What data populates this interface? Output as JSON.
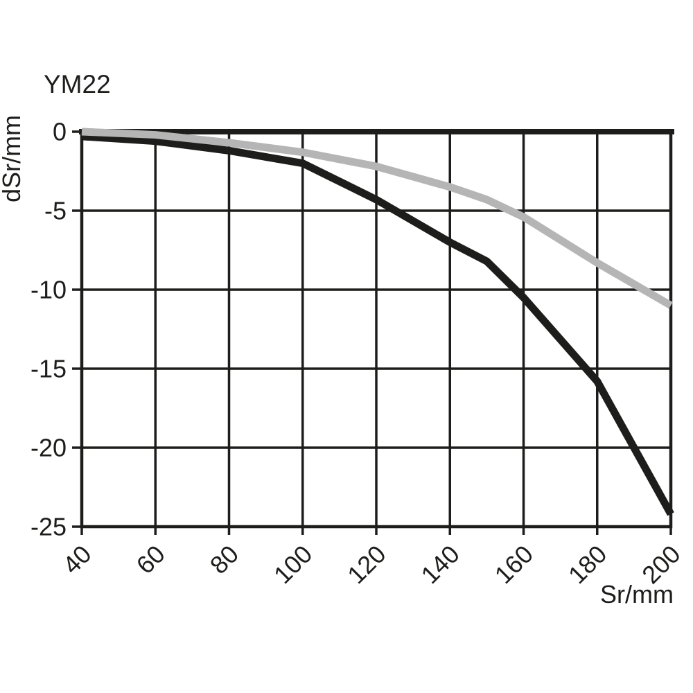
{
  "page": {
    "background": "#ffffff"
  },
  "chart_data": {
    "type": "line",
    "title": "YM22",
    "xlabel": "Sr/mm",
    "ylabel": "dSr/mm",
    "xlim": [
      40,
      200
    ],
    "ylim": [
      -25,
      0
    ],
    "xticks": [
      40,
      60,
      80,
      100,
      120,
      140,
      160,
      180,
      200
    ],
    "yticks": [
      0,
      -5,
      -10,
      -15,
      -20,
      -25
    ],
    "grid": true,
    "legend": "none",
    "axis_color": "#1d1d1b",
    "x": [
      40,
      60,
      80,
      100,
      120,
      140,
      150,
      160,
      180,
      200
    ],
    "series": [
      {
        "name": "black-curve",
        "color": "#1d1d1b",
        "values": [
          -0.3,
          -0.6,
          -1.2,
          -2.0,
          -4.3,
          -7.0,
          -8.2,
          -10.5,
          -15.8,
          -24.2
        ]
      },
      {
        "name": "gray-curve",
        "color": "#b5b5b5",
        "values": [
          0,
          -0.2,
          -0.7,
          -1.3,
          -2.2,
          -3.5,
          -4.3,
          -5.4,
          -8.3,
          -11.0
        ]
      }
    ]
  }
}
